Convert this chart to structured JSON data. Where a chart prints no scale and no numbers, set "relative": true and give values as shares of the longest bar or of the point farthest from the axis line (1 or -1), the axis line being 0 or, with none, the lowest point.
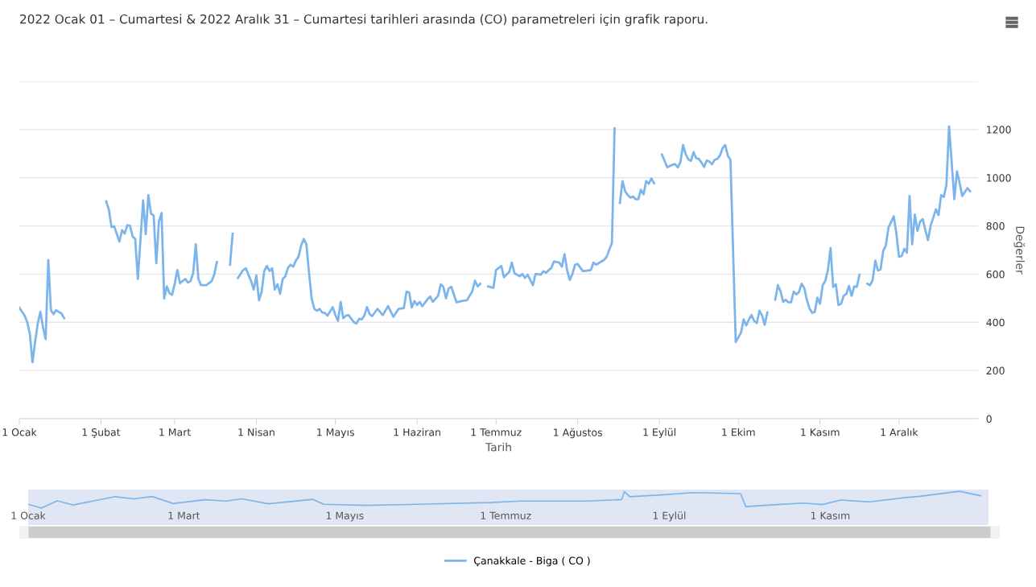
{
  "chart_data": [
    {
      "type": "line",
      "title": "2022 Ocak 01 – Cumartesi & 2022 Aralık 31 – Cumartesi tarihleri arasında (CO) parametreleri için grafik raporu.",
      "xlabel": "Tarih",
      "y2label": "Değerler",
      "x": [
        "2022-01-01",
        "2022-01-03",
        "2022-01-04",
        "2022-01-05",
        "2022-01-06",
        "2022-01-07",
        "2022-01-08",
        "2022-01-09",
        "2022-01-10",
        "2022-01-11",
        "2022-01-12",
        "2022-01-13",
        "2022-01-14",
        "2022-01-15",
        "2022-01-17",
        "2022-01-18",
        "2022-01-19",
        "2022-02-03",
        "2022-02-04",
        "2022-02-05",
        "2022-02-06",
        "2022-02-08",
        "2022-02-09",
        "2022-02-10",
        "2022-02-11",
        "2022-02-12",
        "2022-02-13",
        "2022-02-14",
        "2022-02-15",
        "2022-02-17",
        "2022-02-18",
        "2022-02-19",
        "2022-02-20",
        "2022-02-21",
        "2022-02-22",
        "2022-02-23",
        "2022-02-24",
        "2022-02-25",
        "2022-02-26",
        "2022-02-27",
        "2022-02-28",
        "2022-03-01",
        "2022-03-02",
        "2022-03-03",
        "2022-03-05",
        "2022-03-06",
        "2022-03-07",
        "2022-03-08",
        "2022-03-09",
        "2022-03-10",
        "2022-03-11",
        "2022-03-13",
        "2022-03-15",
        "2022-03-16",
        "2022-03-17",
        "2022-03-18",
        "2022-03-22",
        "2022-03-23",
        "2022-03-24",
        "2022-03-25",
        "2022-03-27",
        "2022-03-28",
        "2022-03-30",
        "2022-03-31",
        "2022-04-01",
        "2022-04-02",
        "2022-04-03",
        "2022-04-04",
        "2022-04-05",
        "2022-04-06",
        "2022-04-07",
        "2022-04-08",
        "2022-04-09",
        "2022-04-10",
        "2022-04-11",
        "2022-04-12",
        "2022-04-13",
        "2022-04-14",
        "2022-04-15",
        "2022-04-16",
        "2022-04-17",
        "2022-04-18",
        "2022-04-19",
        "2022-04-20",
        "2022-04-21",
        "2022-04-22",
        "2022-04-23",
        "2022-04-24",
        "2022-04-25",
        "2022-04-26",
        "2022-04-27",
        "2022-04-28",
        "2022-04-29",
        "2022-04-30",
        "2022-05-01",
        "2022-05-02",
        "2022-05-03",
        "2022-05-04",
        "2022-05-05",
        "2022-05-06",
        "2022-05-08",
        "2022-05-09",
        "2022-05-10",
        "2022-05-11",
        "2022-05-12",
        "2022-05-13",
        "2022-05-14",
        "2022-05-15",
        "2022-05-17",
        "2022-05-19",
        "2022-05-21",
        "2022-05-23",
        "2022-05-25",
        "2022-05-27",
        "2022-05-28",
        "2022-05-29",
        "2022-05-30",
        "2022-05-31",
        "2022-06-01",
        "2022-06-02",
        "2022-06-03",
        "2022-06-05",
        "2022-06-06",
        "2022-06-07",
        "2022-06-09",
        "2022-06-10",
        "2022-06-11",
        "2022-06-12",
        "2022-06-13",
        "2022-06-14",
        "2022-06-16",
        "2022-06-18",
        "2022-06-20",
        "2022-06-22",
        "2022-06-23",
        "2022-06-24",
        "2022-06-25",
        "2022-06-26",
        "2022-06-28",
        "2022-06-30",
        "2022-07-01",
        "2022-07-03",
        "2022-07-04",
        "2022-07-06",
        "2022-07-07",
        "2022-07-08",
        "2022-07-10",
        "2022-07-11",
        "2022-07-12",
        "2022-07-13",
        "2022-07-15",
        "2022-07-16",
        "2022-07-18",
        "2022-07-19",
        "2022-07-20",
        "2022-07-22",
        "2022-07-23",
        "2022-07-25",
        "2022-07-26",
        "2022-07-27",
        "2022-07-28",
        "2022-07-29",
        "2022-07-30",
        "2022-07-31",
        "2022-08-01",
        "2022-08-03",
        "2022-08-06",
        "2022-08-07",
        "2022-08-08",
        "2022-08-11",
        "2022-08-12",
        "2022-08-14",
        "2022-08-15",
        "2022-08-16",
        "2022-08-17",
        "2022-08-18",
        "2022-08-19",
        "2022-08-20",
        "2022-08-21",
        "2022-08-22",
        "2022-08-23",
        "2022-08-24",
        "2022-08-25",
        "2022-08-26",
        "2022-08-27",
        "2022-08-28",
        "2022-08-29",
        "2022-08-30",
        "2022-08-31",
        "2022-09-02",
        "2022-09-04",
        "2022-09-06",
        "2022-09-07",
        "2022-09-08",
        "2022-09-09",
        "2022-09-10",
        "2022-09-11",
        "2022-09-12",
        "2022-09-13",
        "2022-09-14",
        "2022-09-15",
        "2022-09-16",
        "2022-09-17",
        "2022-09-18",
        "2022-09-19",
        "2022-09-20",
        "2022-09-21",
        "2022-09-22",
        "2022-09-23",
        "2022-09-24",
        "2022-09-25",
        "2022-09-26",
        "2022-09-27",
        "2022-09-28",
        "2022-09-30",
        "2022-10-02",
        "2022-10-03",
        "2022-10-04",
        "2022-10-05",
        "2022-10-06",
        "2022-10-07",
        "2022-10-08",
        "2022-10-09",
        "2022-10-10",
        "2022-10-11",
        "2022-10-12",
        "2022-10-13",
        "2022-10-15",
        "2022-10-16",
        "2022-10-17",
        "2022-10-18",
        "2022-10-19",
        "2022-10-20",
        "2022-10-21",
        "2022-10-22",
        "2022-10-23",
        "2022-10-24",
        "2022-10-25",
        "2022-10-26",
        "2022-10-27",
        "2022-10-28",
        "2022-10-29",
        "2022-10-30",
        "2022-10-31",
        "2022-11-01",
        "2022-11-02",
        "2022-11-03",
        "2022-11-04",
        "2022-11-05",
        "2022-11-06",
        "2022-11-07",
        "2022-11-08",
        "2022-11-09",
        "2022-11-10",
        "2022-11-11",
        "2022-11-12",
        "2022-11-13",
        "2022-11-14",
        "2022-11-15",
        "2022-11-16",
        "2022-11-17",
        "2022-11-19",
        "2022-11-20",
        "2022-11-21",
        "2022-11-22",
        "2022-11-23",
        "2022-11-24",
        "2022-11-25",
        "2022-11-26",
        "2022-11-27",
        "2022-11-29",
        "2022-11-30",
        "2022-12-01",
        "2022-12-02",
        "2022-12-03",
        "2022-12-04",
        "2022-12-05",
        "2022-12-06",
        "2022-12-07",
        "2022-12-08",
        "2022-12-09",
        "2022-12-10",
        "2022-12-11",
        "2022-12-12",
        "2022-12-13",
        "2022-12-14",
        "2022-12-15",
        "2022-12-16",
        "2022-12-17",
        "2022-12-18",
        "2022-12-19",
        "2022-12-20",
        "2022-12-22",
        "2022-12-23",
        "2022-12-24",
        "2022-12-25",
        "2022-12-27",
        "2022-12-28"
      ],
      "series": [
        {
          "name": "Çanakkale - Biga ( CO )",
          "color": "#7cb5ec",
          "axis": "y2",
          "values": [
            461,
            428,
            401,
            352,
            234,
            319,
            395,
            444,
            379,
            330,
            659,
            450,
            434,
            450,
            437,
            417,
            null,
            902,
            867,
            796,
            799,
            735,
            782,
            768,
            803,
            801,
            757,
            746,
            580,
            906,
            766,
            928,
            851,
            843,
            645,
            818,
            854,
            499,
            549,
            521,
            514,
            560,
            617,
            562,
            580,
            565,
            571,
            604,
            724,
            580,
            554,
            554,
            571,
            598,
            650,
            null,
            639,
            768,
            null,
            584,
            617,
            624,
            571,
            536,
            595,
            492,
            527,
            613,
            634,
            613,
            624,
            536,
            558,
            518,
            580,
            591,
            626,
            639,
            631,
            656,
            672,
            719,
            746,
            724,
            604,
            499,
            456,
            448,
            456,
            441,
            439,
            428,
            445,
            463,
            430,
            406,
            485,
            417,
            428,
            430,
            401,
            395,
            415,
            412,
            428,
            463,
            434,
            426,
            456,
            430,
            467,
            423,
            456,
            459,
            527,
            524,
            461,
            488,
            472,
            485,
            467,
            496,
            507,
            485,
            510,
            558,
            547,
            499,
            540,
            547,
            483,
            488,
            492,
            529,
            573,
            549,
            560,
            null,
            549,
            543,
            617,
            634,
            587,
            609,
            648,
            604,
            591,
            601,
            584,
            598,
            554,
            601,
            598,
            612,
            606,
            626,
            653,
            648,
            631,
            683,
            615,
            576,
            601,
            639,
            642,
            612,
            617,
            648,
            639,
            659,
            672,
            730,
            1205,
            null,
            895,
            986,
            944,
            928,
            917,
            922,
            911,
            911,
            950,
            931,
            986,
            975,
            997,
            977,
            null,
            1096,
            1043,
            1054,
            1056,
            1043,
            1065,
            1136,
            1098,
            1076,
            1070,
            1106,
            1081,
            1078,
            1063,
            1045,
            1072,
            1067,
            1056,
            1074,
            1078,
            1092,
            1122,
            1136,
            1092,
            1074,
            318,
            357,
            412,
            387,
            412,
            430,
            406,
            397,
            448,
            428,
            390,
            441,
            null,
            494,
            554,
            529,
            485,
            494,
            483,
            483,
            527,
            516,
            525,
            560,
            543,
            494,
            458,
            439,
            443,
            502,
            477,
            554,
            571,
            617,
            708,
            547,
            558,
            472,
            477,
            510,
            518,
            551,
            510,
            549,
            547,
            598,
            null,
            560,
            554,
            576,
            656,
            615,
            620,
            697,
            719,
            793,
            840,
            768,
            672,
            675,
            705,
            689,
            924,
            724,
            847,
            779,
            818,
            829,
            782,
            741,
            801,
            834,
            869,
            845,
            928,
            920,
            971,
            1213,
            911,
            1026,
            979,
            924,
            957,
            944
          ]
        }
      ],
      "xlim": [
        "2022-01-01",
        "2022-12-31"
      ],
      "xticks": [
        {
          "value": "2022-01-01",
          "label": "1 Ocak"
        },
        {
          "value": "2022-02-01",
          "label": "1 Şubat"
        },
        {
          "value": "2022-03-01",
          "label": "1 Mart"
        },
        {
          "value": "2022-04-01",
          "label": "1 Nisan"
        },
        {
          "value": "2022-05-01",
          "label": "1 Mayıs"
        },
        {
          "value": "2022-06-01",
          "label": "1 Haziran"
        },
        {
          "value": "2022-07-01",
          "label": "1 Temmuz"
        },
        {
          "value": "2022-08-01",
          "label": "1 Ağustos"
        },
        {
          "value": "2022-09-01",
          "label": "1 Eylül"
        },
        {
          "value": "2022-10-01",
          "label": "1 Ekim"
        },
        {
          "value": "2022-11-01",
          "label": "1 Kasım"
        },
        {
          "value": "2022-12-01",
          "label": "1 Aralık"
        }
      ],
      "y2lim": [
        0,
        1400
      ],
      "y2ticks": [
        0,
        200,
        400,
        600,
        800,
        1000,
        1200,
        {
          "value": 1400,
          "label": null
        }
      ],
      "grid": "y",
      "legend": "bottom"
    },
    {
      "type": "line",
      "relative": true,
      "tick_labels": "x",
      "x": [
        "2022-01-01",
        "2022-01-06",
        "2022-01-12",
        "2022-01-18",
        "2022-02-03",
        "2022-02-10",
        "2022-02-17",
        "2022-02-25",
        "2022-03-09",
        "2022-03-17",
        "2022-03-23",
        "2022-04-02",
        "2022-04-19",
        "2022-04-23",
        "2022-05-09",
        "2022-06-01",
        "2022-06-25",
        "2022-07-07",
        "2022-08-01",
        "2022-08-14",
        "2022-08-15",
        "2022-08-17",
        "2022-08-29",
        "2022-09-10",
        "2022-09-28",
        "2022-09-30",
        "2022-10-12",
        "2022-10-22",
        "2022-10-29",
        "2022-11-05",
        "2022-11-16",
        "2022-11-29",
        "2022-12-05",
        "2022-12-20",
        "2022-12-28"
      ],
      "series": [
        {
          "color": "#7cb5ec",
          "values": [
            0.23,
            0,
            0.43,
            0.19,
            0.68,
            0.55,
            0.69,
            0.27,
            0.5,
            0.42,
            0.55,
            0.26,
            0.52,
            0.23,
            0.16,
            0.24,
            0.33,
            0.42,
            0.42,
            0.51,
            0.99,
            0.68,
            0.78,
            0.92,
            0.86,
            0.09,
            0.21,
            0.3,
            0.21,
            0.48,
            0.37,
            0.62,
            0.7,
            1,
            0.73
          ]
        }
      ],
      "xlim": [
        "2022-01-01",
        "2022-12-31"
      ],
      "xticks": [
        {
          "value": "2022-01-01",
          "label": "1 Ocak"
        },
        {
          "value": "2022-03-01",
          "label": "1 Mart"
        },
        {
          "value": "2022-05-01",
          "label": "1 Mayıs"
        },
        {
          "value": "2022-07-01",
          "label": "1 Temmuz"
        },
        {
          "value": "2022-09-01",
          "label": "1 Eylül"
        },
        {
          "value": "2022-11-01",
          "label": "1 Kasım"
        }
      ],
      "bands": [
        {
          "axis": "x",
          "from": "2022-01-01",
          "to": "2022-12-31",
          "color": "#ccd6eb"
        }
      ]
    }
  ]
}
